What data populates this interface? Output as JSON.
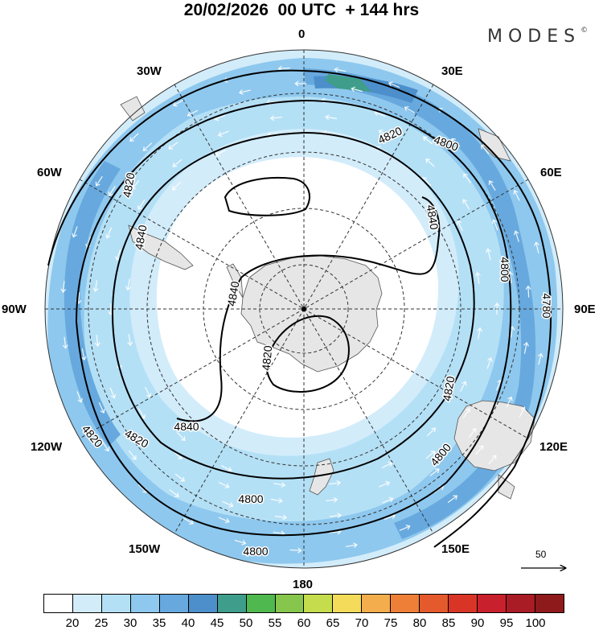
{
  "title": "20/02/2026  00 UTC  + 144 hrs",
  "brand": {
    "name": "MODES",
    "mark": "©"
  },
  "meridian_labels": {
    "m0": "0",
    "m30e": "30E",
    "m60e": "60E",
    "m90e": "90E",
    "m120e": "120E",
    "m150e": "150E",
    "m180": "180",
    "m150w": "150W",
    "m120w": "120W",
    "m90w": "90W",
    "m60w": "60W",
    "m30w": "30W"
  },
  "contour_labels": [
    "4820",
    "4800",
    "4820",
    "4840",
    "4840",
    "4800",
    "4780",
    "4800",
    "4820",
    "4840",
    "4820",
    "4840",
    "4820",
    "4800",
    "4820",
    "4800"
  ],
  "wind_scale": {
    "value": "50"
  },
  "colorbar": {
    "colors": [
      "#ffffff",
      "#d2ecfa",
      "#b4e0f6",
      "#8ec8ee",
      "#67a9de",
      "#4d8fcb",
      "#3f9e8b",
      "#4fb84f",
      "#86c64c",
      "#c5dc4c",
      "#f4dc5a",
      "#f4ad4c",
      "#ee7f36",
      "#e45a2c",
      "#d93527",
      "#c8202c",
      "#a91c25",
      "#8e1a1c"
    ],
    "ticks": [
      "20",
      "25",
      "30",
      "35",
      "40",
      "45",
      "50",
      "55",
      "60",
      "65",
      "70",
      "75",
      "80",
      "85",
      "90",
      "95",
      "100"
    ]
  }
}
